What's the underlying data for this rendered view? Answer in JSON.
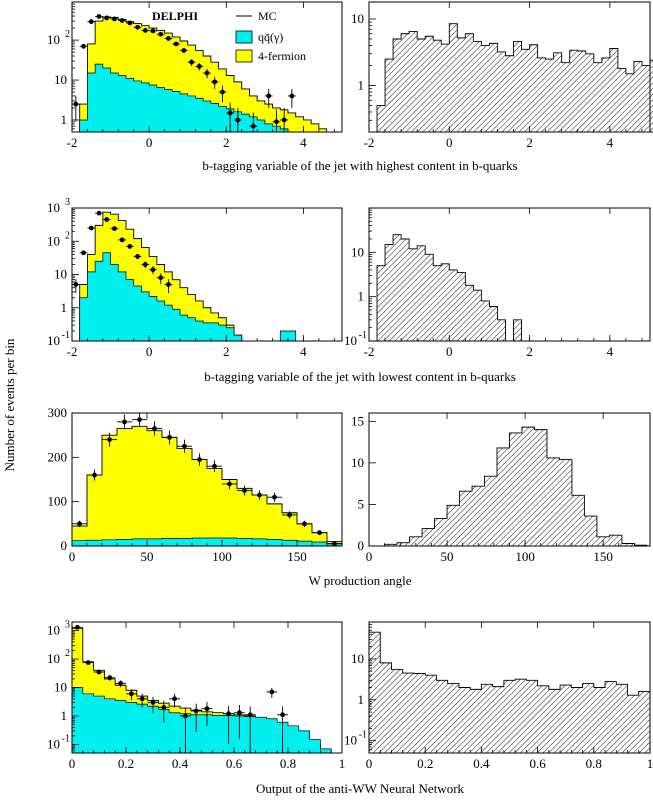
{
  "figure": {
    "ylabel": "Number of events per bin",
    "colors": {
      "qq": "#00f0f0",
      "fourf": "#ffff00",
      "line": "#000000",
      "hatch": "#000000"
    }
  },
  "legend": {
    "title": "DELPHI",
    "entries": [
      {
        "label": "MC",
        "style": "line"
      },
      {
        "label": "qq̄(γ)",
        "style": "cyan"
      },
      {
        "label": "4-fermion",
        "style": "yellow"
      }
    ]
  },
  "chart_data": [
    {
      "type": "area",
      "row": 0,
      "side": "left",
      "xlabel": "b-tagging variable of the jet with highest content in b-quarks",
      "xlim": [
        -2,
        5
      ],
      "ylog": true,
      "ylim": [
        0.5,
        900
      ],
      "xticks": [
        -2,
        0,
        2,
        4
      ],
      "yticks": [
        {
          "v": 1,
          "t": "1"
        },
        {
          "v": 10,
          "t": "10"
        },
        {
          "v": 100,
          "t": "10",
          "sup": "2"
        }
      ],
      "x0": -2,
      "bw": 0.2,
      "mc": [
        0.3,
        2.5,
        80,
        300,
        380,
        370,
        330,
        290,
        260,
        230,
        200,
        175,
        150,
        120,
        95,
        75,
        55,
        40,
        28,
        19,
        13,
        9,
        6,
        4,
        3,
        2.5,
        2,
        1.8,
        1.5,
        1.2,
        1,
        0.8,
        0.6,
        0.5,
        0.4
      ],
      "qq": [
        0.3,
        1,
        15,
        25,
        20,
        15,
        13,
        11,
        9.5,
        8.5,
        7.5,
        6.5,
        5.8,
        5.2,
        4.5,
        4,
        3.5,
        3,
        2.6,
        2.2,
        1.9,
        1.6,
        1.4,
        1.2,
        1,
        0.8,
        0.7,
        0.6,
        0.5,
        0.4,
        0.4,
        0.3,
        0.3,
        0.3,
        0.3
      ],
      "points": [
        [
          -1.9,
          2.5
        ],
        [
          -1.7,
          70
        ],
        [
          -1.5,
          290
        ],
        [
          -1.3,
          390
        ],
        [
          -1.1,
          360
        ],
        [
          -0.9,
          340
        ],
        [
          -0.7,
          310
        ],
        [
          -0.5,
          270
        ],
        [
          -0.3,
          210
        ],
        [
          -0.1,
          175
        ],
        [
          0.1,
          170
        ],
        [
          0.3,
          140
        ],
        [
          0.5,
          110
        ],
        [
          0.7,
          80
        ],
        [
          0.9,
          55
        ],
        [
          1.1,
          28
        ],
        [
          1.3,
          22
        ],
        [
          1.5,
          15
        ],
        [
          1.7,
          9
        ],
        [
          1.9,
          5
        ],
        [
          2.1,
          1.5
        ],
        [
          2.3,
          1
        ],
        [
          2.7,
          0.7
        ],
        [
          3.1,
          4
        ],
        [
          3.3,
          0.9
        ],
        [
          3.5,
          1
        ],
        [
          3.7,
          4
        ]
      ]
    },
    {
      "type": "area",
      "row": 0,
      "side": "right",
      "xlim": [
        -2,
        5
      ],
      "ylog": true,
      "ylim": [
        0.2,
        18
      ],
      "xticks": [
        -2,
        0,
        2,
        4
      ],
      "yticks": [
        {
          "v": 1,
          "t": "1"
        },
        {
          "v": 10,
          "t": "10"
        }
      ],
      "x0": -1.8,
      "bw": 0.2,
      "sig": [
        0.5,
        2.5,
        5,
        6,
        6.5,
        5,
        5.5,
        4.8,
        4.2,
        8.5,
        5.2,
        6,
        4.6,
        4,
        4.3,
        3.2,
        2.8,
        4.6,
        3.5,
        4.1,
        2.6,
        2.5,
        3.1,
        2.2,
        3.4,
        3.3,
        3,
        2.2,
        2.6,
        3.6,
        1.8,
        1.5,
        2.3,
        2,
        2.4,
        1.3
      ]
    },
    {
      "type": "area",
      "row": 1,
      "side": "left",
      "xlabel": "b-tagging variable of the jet with lowest content in b-quarks",
      "xlim": [
        -2,
        5
      ],
      "ylog": true,
      "ylim": [
        0.1,
        1000
      ],
      "xticks": [
        -2,
        0,
        2,
        4
      ],
      "yticks": [
        {
          "v": 0.1,
          "t": "10",
          "sup": "-1"
        },
        {
          "v": 1,
          "t": "1"
        },
        {
          "v": 10,
          "t": "10"
        },
        {
          "v": 100,
          "t": "10",
          "sup": "2"
        },
        {
          "v": 1000,
          "t": "10",
          "sup": "3"
        }
      ],
      "x0": -2,
      "bw": 0.2,
      "mc": [
        0.1,
        5,
        40,
        300,
        750,
        650,
        420,
        230,
        120,
        65,
        35,
        20,
        12,
        7,
        4,
        2.5,
        1.6,
        1,
        0.7,
        0.5,
        0.3,
        0.15,
        0.1,
        0.08,
        0.06,
        0.05,
        0.04,
        0.04,
        0.04,
        0.03,
        0.03,
        0.03,
        0.03,
        0.03,
        0.03
      ],
      "qq": [
        0.1,
        2,
        12,
        25,
        45,
        20,
        12,
        7,
        4.5,
        3,
        2.2,
        1.6,
        1.2,
        0.9,
        0.6,
        0.5,
        0.4,
        0.35,
        0.35,
        0.3,
        0.25,
        0.15,
        0.06,
        0.05,
        0.05,
        0.05,
        0.05,
        0.2,
        0.2,
        0.05,
        0.05,
        0.05,
        0.05,
        0.05,
        0.05
      ],
      "points": [
        [
          -1.9,
          5
        ],
        [
          -1.7,
          45
        ],
        [
          -1.5,
          250
        ],
        [
          -1.3,
          700
        ],
        [
          -1.1,
          450
        ],
        [
          -0.9,
          240
        ],
        [
          -0.7,
          110
        ],
        [
          -0.5,
          70
        ],
        [
          -0.3,
          35
        ],
        [
          -0.1,
          20
        ],
        [
          0.1,
          14
        ],
        [
          0.3,
          8
        ],
        [
          0.5,
          5
        ]
      ]
    },
    {
      "type": "area",
      "row": 1,
      "side": "right",
      "xlim": [
        -2,
        5
      ],
      "ylog": true,
      "ylim": [
        0.1,
        100
      ],
      "xticks": [
        -2,
        0,
        2,
        4
      ],
      "yticks": [
        {
          "v": 0.1,
          "t": "10",
          "sup": "-1"
        },
        {
          "v": 1,
          "t": "1"
        },
        {
          "v": 10,
          "t": "10"
        }
      ],
      "x0": -1.8,
      "bw": 0.2,
      "sig": [
        5,
        15,
        25,
        20,
        12,
        14,
        9,
        5,
        5.5,
        4,
        3.5,
        1.8,
        1.4,
        0.8,
        0.6,
        0.3,
        0.1,
        0.3,
        0.1
      ]
    },
    {
      "type": "area",
      "row": 2,
      "side": "left",
      "xlabel": "W production angle",
      "xlim": [
        0,
        180
      ],
      "ylog": false,
      "ylim": [
        0,
        300
      ],
      "xticks": [
        0,
        50,
        100,
        150
      ],
      "yticks": [
        {
          "v": 0,
          "t": "0"
        },
        {
          "v": 100,
          "t": "100"
        },
        {
          "v": 200,
          "t": "200"
        },
        {
          "v": 300,
          "t": "300"
        }
      ],
      "x0": 0,
      "bw": 10,
      "mc": [
        45,
        160,
        250,
        265,
        270,
        260,
        245,
        220,
        195,
        175,
        150,
        130,
        115,
        95,
        75,
        50,
        30,
        10
      ],
      "qq": [
        12,
        13,
        14,
        15,
        16,
        16,
        17,
        17,
        18,
        18,
        18,
        17,
        16,
        15,
        13,
        11,
        9,
        6
      ],
      "points": [
        [
          5,
          50
        ],
        [
          15,
          160
        ],
        [
          25,
          240
        ],
        [
          35,
          280
        ],
        [
          45,
          285
        ],
        [
          55,
          265
        ],
        [
          65,
          245
        ],
        [
          75,
          225
        ],
        [
          85,
          195
        ],
        [
          95,
          180
        ],
        [
          105,
          140
        ],
        [
          115,
          125
        ],
        [
          125,
          115
        ],
        [
          135,
          110
        ],
        [
          145,
          70
        ],
        [
          155,
          50
        ],
        [
          165,
          30
        ],
        [
          175,
          5
        ]
      ]
    },
    {
      "type": "area",
      "row": 2,
      "side": "right",
      "xlim": [
        0,
        180
      ],
      "ylog": false,
      "ylim": [
        0,
        16
      ],
      "xticks": [
        0,
        50,
        100,
        150
      ],
      "yticks": [
        {
          "v": 0,
          "t": "0"
        },
        {
          "v": 5,
          "t": "5"
        },
        {
          "v": 10,
          "t": "10"
        },
        {
          "v": 15,
          "t": "15"
        }
      ],
      "x0": 10,
      "bw": 8,
      "sig": [
        0.2,
        0.4,
        1.1,
        2.1,
        3.3,
        4.9,
        6.6,
        7.2,
        8.4,
        11.8,
        13.6,
        14.3,
        14,
        10.6,
        10.4,
        6.1,
        3.6,
        1.1,
        1.3,
        0.3,
        0.1
      ]
    },
    {
      "type": "area",
      "row": 3,
      "side": "left",
      "xlabel": "Output of the anti-WW Neural Network",
      "xlim": [
        0,
        1
      ],
      "ylog": true,
      "ylim": [
        0.05,
        2000
      ],
      "xticks": [
        0,
        0.2,
        0.4,
        0.6,
        0.8,
        1
      ],
      "xticklabels": [
        "0",
        "0.2",
        "0.4",
        "0.6",
        "0.8",
        "1"
      ],
      "yticks": [
        {
          "v": 0.1,
          "t": "10",
          "sup": "-1"
        },
        {
          "v": 1,
          "t": "1"
        },
        {
          "v": 10,
          "t": "10"
        },
        {
          "v": 100,
          "t": "10",
          "sup": "2"
        },
        {
          "v": 1000,
          "t": "10",
          "sup": "3"
        }
      ],
      "x0": 0,
      "bw": 0.04,
      "mc": [
        1200,
        80,
        40,
        20,
        12,
        8,
        5,
        3.5,
        2.8,
        2.2,
        1.9,
        1.6,
        1.4,
        1.3,
        1.2,
        1.1,
        1,
        0.8,
        0.5,
        0.4,
        0.3,
        0.2,
        0.1,
        0.05,
        0.04
      ],
      "qq": [
        10,
        6,
        5,
        4,
        3.5,
        3,
        2.6,
        2.2,
        1.7,
        1.3,
        1.2,
        1.1,
        1.1,
        1.05,
        1.05,
        1,
        0.95,
        0.9,
        0.8,
        0.6,
        0.45,
        0.3,
        0.15,
        0.07,
        0.05
      ],
      "points": [
        [
          0.02,
          1300
        ],
        [
          0.06,
          75
        ],
        [
          0.1,
          35
        ],
        [
          0.14,
          22
        ],
        [
          0.18,
          14
        ],
        [
          0.22,
          6
        ],
        [
          0.26,
          4
        ],
        [
          0.3,
          3
        ],
        [
          0.34,
          2
        ],
        [
          0.38,
          4
        ],
        [
          0.42,
          1
        ],
        [
          0.46,
          1.5
        ],
        [
          0.5,
          1.8
        ],
        [
          0.58,
          1.2
        ],
        [
          0.62,
          1.3
        ],
        [
          0.66,
          1.1
        ],
        [
          0.74,
          7
        ],
        [
          0.78,
          1.1
        ]
      ]
    },
    {
      "type": "area",
      "row": 3,
      "side": "right",
      "xlim": [
        0,
        1
      ],
      "ylog": true,
      "ylim": [
        0.05,
        80
      ],
      "xticks": [
        0,
        0.2,
        0.4,
        0.6,
        0.8,
        1
      ],
      "xticklabels": [
        "0",
        "0.2",
        "0.4",
        "0.6",
        "0.8",
        "1"
      ],
      "yticks": [
        {
          "v": 0.1,
          "t": "10",
          "sup": "-1"
        },
        {
          "v": 1,
          "t": "1"
        },
        {
          "v": 10,
          "t": "10"
        }
      ],
      "x0": 0,
      "bw": 0.04,
      "sig": [
        45,
        8,
        5.5,
        4.5,
        4.4,
        4,
        3,
        2.5,
        2,
        1.8,
        2.4,
        2.1,
        3,
        3.2,
        3,
        2.2,
        1.8,
        2.3,
        2,
        2.5,
        2,
        2.8,
        2.4,
        1.3,
        1.6
      ]
    }
  ]
}
